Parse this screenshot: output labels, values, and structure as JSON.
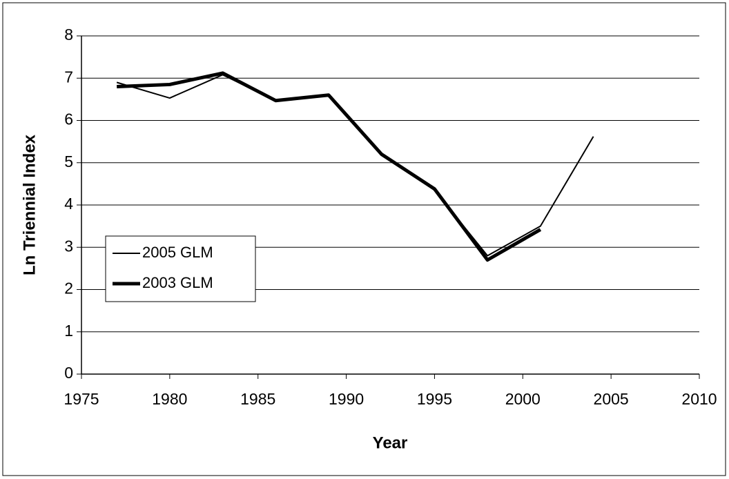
{
  "chart_data": {
    "type": "line",
    "x_label": "Year",
    "y_label": "Ln Triennial Index",
    "x": [
      1977,
      1980,
      1983,
      1986,
      1989,
      1992,
      1995,
      1998,
      2001,
      2004
    ],
    "series": [
      {
        "name": "2005 GLM",
        "color": "#000000",
        "width": 2,
        "values": [
          6.9,
          6.53,
          7.08,
          6.47,
          6.6,
          5.22,
          4.35,
          2.8,
          3.5,
          5.62
        ]
      },
      {
        "name": "2003 GLM",
        "color": "#000000",
        "width": 5,
        "values": [
          6.8,
          6.85,
          7.12,
          6.47,
          6.6,
          5.2,
          4.38,
          2.7,
          3.42,
          null
        ]
      }
    ],
    "xlim": [
      1975,
      2010
    ],
    "xticks": [
      1975,
      1980,
      1985,
      1990,
      1995,
      2000,
      2005,
      2010
    ],
    "ylim": [
      0,
      8
    ],
    "yticks": [
      0,
      1,
      2,
      3,
      4,
      5,
      6,
      7,
      8
    ],
    "grid": true,
    "legend": "left"
  }
}
